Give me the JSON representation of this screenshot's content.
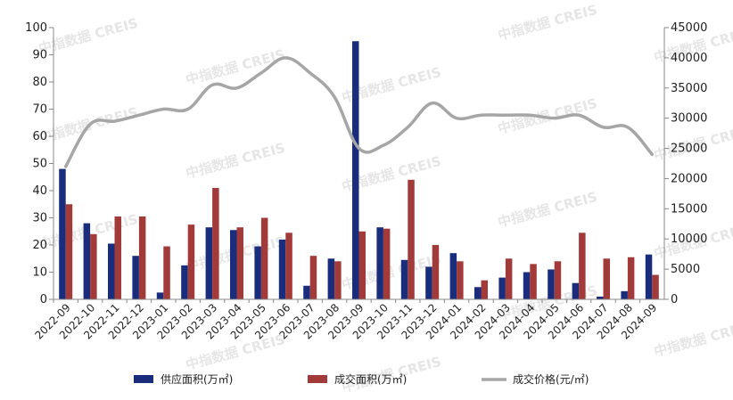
{
  "chart_data": {
    "type": "bar",
    "categories": [
      "2022-09",
      "2022-10",
      "2022-11",
      "2022-12",
      "2023-01",
      "2023-02",
      "2023-03",
      "2023-04",
      "2023-05",
      "2023-06",
      "2023-07",
      "2023-08",
      "2023-09",
      "2023-10",
      "2023-11",
      "2023-12",
      "2024-01",
      "2024-02",
      "2024-03",
      "2024-04",
      "2024-05",
      "2024-06",
      "2024-07",
      "2024-08",
      "2024-09"
    ],
    "series": [
      {
        "name": "供应面积(万㎡)",
        "type": "bar",
        "axis": "left",
        "color": "#1a2d7c",
        "values": [
          48,
          28,
          20.5,
          16,
          2.5,
          12.5,
          26.5,
          25.5,
          19.5,
          22,
          5,
          15,
          95,
          26.5,
          14.5,
          12,
          17,
          4.5,
          8,
          10,
          11,
          6,
          1,
          3,
          16.5
        ]
      },
      {
        "name": "成交面积(万㎡)",
        "type": "bar",
        "axis": "left",
        "color": "#a33a3a",
        "values": [
          35,
          24,
          30.5,
          30.5,
          19.5,
          27.5,
          41,
          26.5,
          30,
          24.5,
          16,
          14,
          25,
          26,
          44,
          20,
          14,
          7,
          15,
          13,
          14,
          24.5,
          15,
          15.5,
          9
        ]
      },
      {
        "name": "成交价格(元/㎡)",
        "type": "line",
        "axis": "right",
        "color": "#a6a6a6",
        "values": [
          22000,
          29000,
          29500,
          30500,
          31500,
          31500,
          35500,
          35000,
          37500,
          40000,
          37500,
          33500,
          25000,
          25500,
          28500,
          32500,
          30000,
          30500,
          30500,
          30500,
          30000,
          30500,
          28500,
          28500,
          24000
        ]
      }
    ],
    "y_left": {
      "min": 0,
      "max": 100,
      "ticks": [
        0,
        10,
        20,
        30,
        40,
        50,
        60,
        70,
        80,
        90,
        100
      ]
    },
    "y_right": {
      "min": 0,
      "max": 45000,
      "ticks": [
        0,
        5000,
        10000,
        15000,
        20000,
        25000,
        30000,
        35000,
        40000,
        45000
      ]
    },
    "legend_placement": "bottom",
    "grid": false,
    "watermark": "中指数据 CREIS"
  }
}
